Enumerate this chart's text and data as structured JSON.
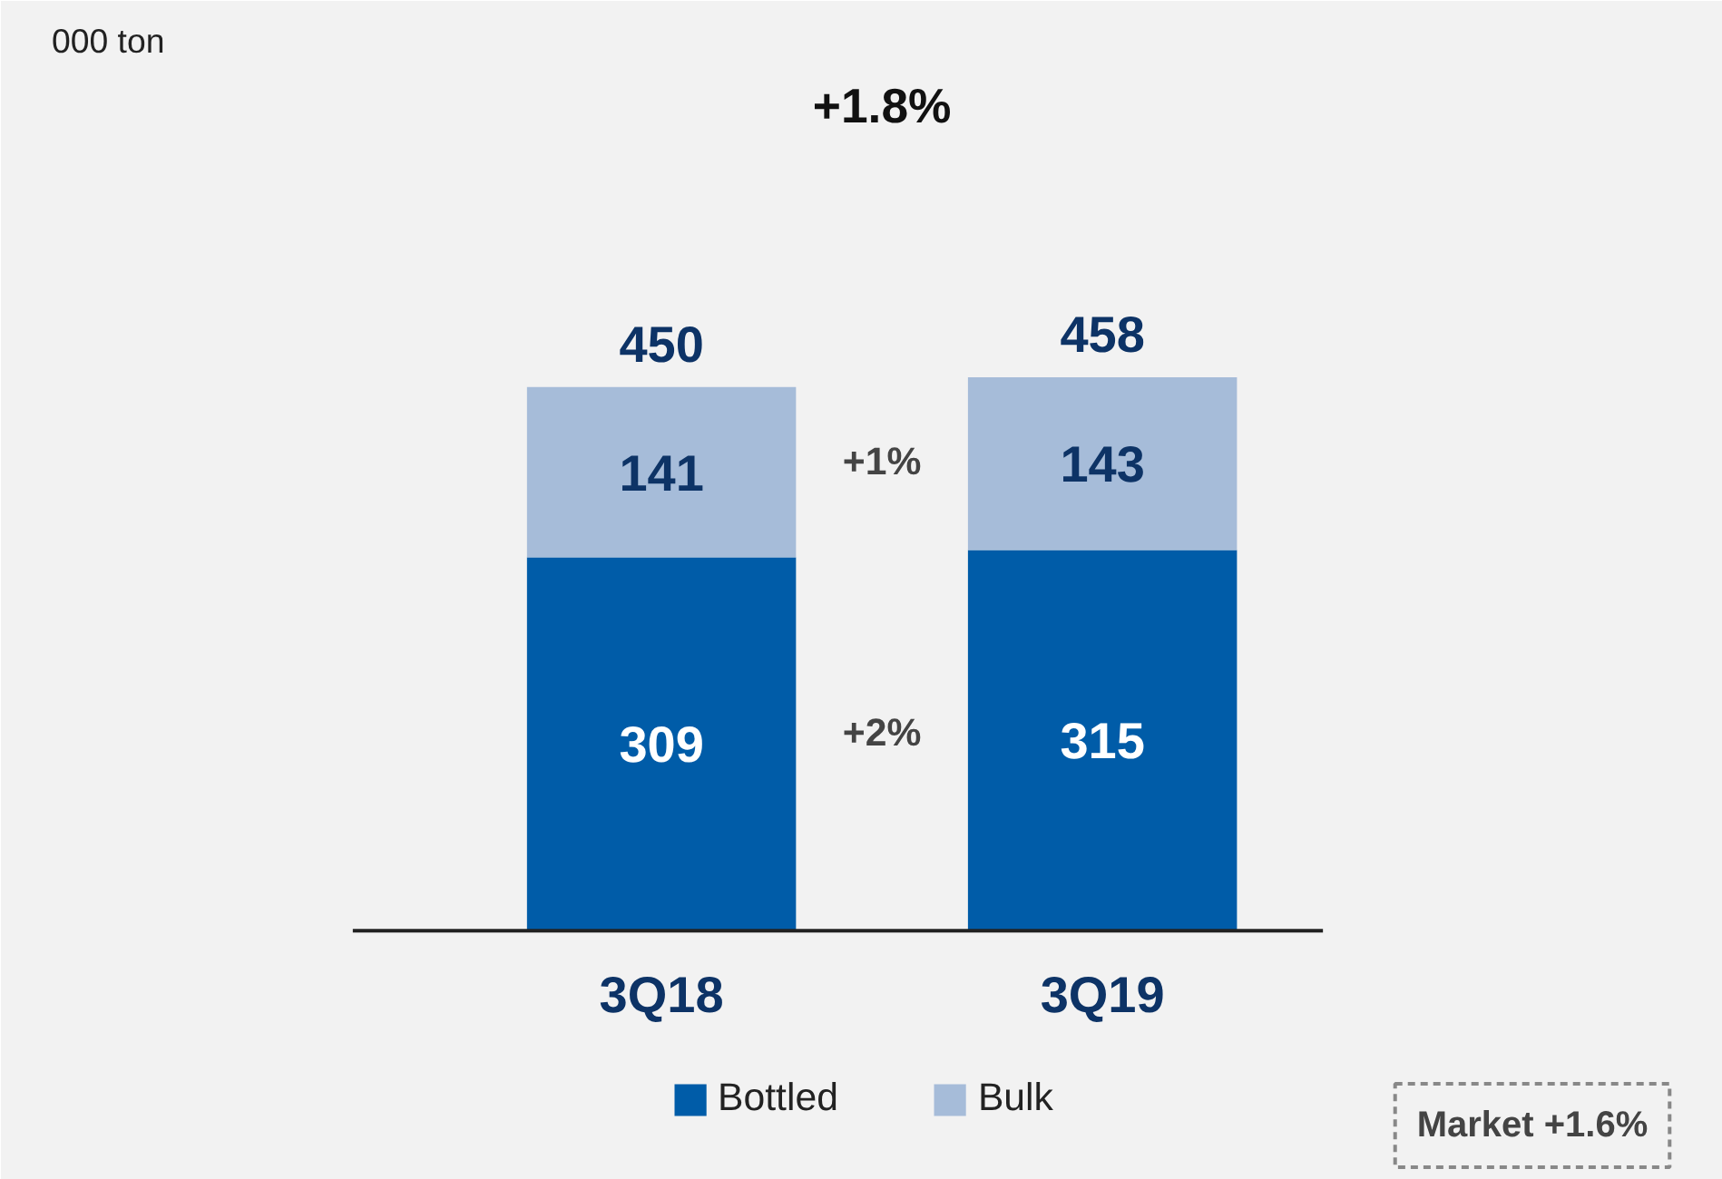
{
  "chart_data": {
    "type": "bar",
    "stacked": true,
    "categories": [
      "3Q18",
      "3Q19"
    ],
    "series": [
      {
        "name": "Bottled",
        "color": "#005ca8",
        "values": [
          309,
          315
        ]
      },
      {
        "name": "Bulk",
        "color": "#a6bcd9",
        "values": [
          141,
          143
        ]
      }
    ],
    "data_labels": true,
    "totals": [
      "450",
      "458"
    ],
    "legend": "bottom",
    "grid": false,
    "annotations": [
      "000 ton",
      "+1.8%",
      "+1%",
      "+2%",
      "Market +1.6%"
    ]
  }
}
